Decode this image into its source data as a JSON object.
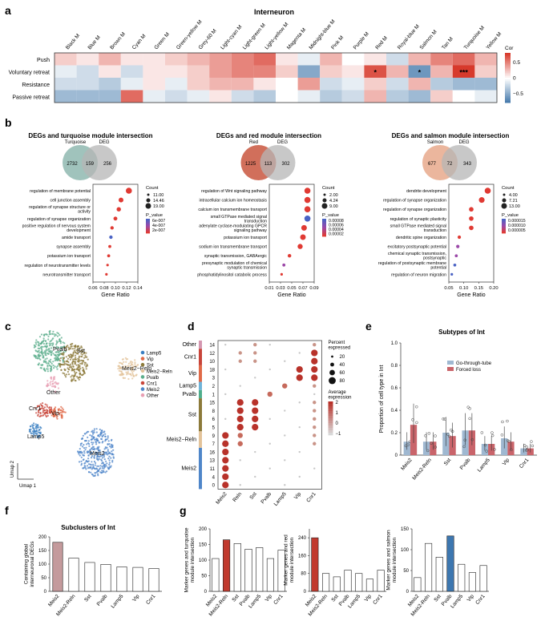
{
  "panels": {
    "a": {
      "label": "a",
      "title": "Interneuron",
      "modules": [
        "Black M",
        "Blue M",
        "Brown M",
        "Cyan M",
        "Green M",
        "Green-yellow M",
        "Grey-60 M",
        "Light-cyan M",
        "Light-green M",
        "Light-yellow M",
        "Magenta M",
        "Midnight-blue M",
        "Pink M",
        "Purple M",
        "Red M",
        "Royal-blue M",
        "Salmon M",
        "Tan M",
        "Turquoise M",
        "Yellow M"
      ],
      "rows": [
        "Push",
        "Voluntary retreat",
        "Resistance",
        "Passive retreat"
      ],
      "values": [
        [
          0.2,
          0.1,
          0.3,
          0.1,
          0.1,
          0.2,
          0.3,
          0.4,
          0.5,
          0.6,
          0.1,
          -0.1,
          0.3,
          0.0,
          0.1,
          -0.2,
          0.3,
          0.5,
          0.6,
          0.3
        ],
        [
          -0.1,
          -0.2,
          0.1,
          -0.2,
          0.1,
          0.1,
          0.2,
          0.4,
          0.5,
          0.5,
          0.2,
          -0.5,
          0.2,
          0.1,
          0.7,
          0.3,
          -0.6,
          0.3,
          0.8,
          0.2
        ],
        [
          -0.2,
          -0.2,
          -0.3,
          -0.1,
          0.1,
          -0.1,
          0.2,
          0.3,
          0.3,
          0.1,
          0.0,
          0.4,
          -0.2,
          -0.1,
          0.2,
          -0.2,
          0.3,
          -0.3,
          -0.4,
          -0.4
        ],
        [
          -0.4,
          -0.4,
          -0.4,
          0.6,
          -0.1,
          -0.2,
          -0.1,
          0.1,
          -0.2,
          -0.3,
          0.0,
          -0.1,
          -0.3,
          -0.2,
          0.3,
          -0.3,
          -0.4,
          0.2,
          0.0,
          -0.1
        ]
      ],
      "stars": [
        {
          "row": 1,
          "col": 14,
          "text": "*"
        },
        {
          "row": 1,
          "col": 16,
          "text": "*"
        },
        {
          "row": 1,
          "col": 18,
          "text": "***"
        }
      ],
      "colorbar": {
        "title": "Cor",
        "ticks": [
          "0.5",
          "0",
          "−0.5"
        ],
        "tick_values": [
          0.5,
          0,
          -0.5
        ]
      },
      "colors": {
        "neg": "#3d74a8",
        "mid": "#ffffff",
        "pos": "#d73a2c"
      }
    },
    "b": {
      "label": "b",
      "subpanels": [
        {
          "title": "DEGs and turquoise module intersection",
          "venn": {
            "left_name": "Turquoise",
            "right_name": "DEG",
            "left_only": "2732",
            "overlap": "159",
            "right_only": "256",
            "left_color": "#8fb8b0",
            "right_color": "#b5b5b5"
          },
          "terms": [
            "regulation of membrane potential",
            "cell junction assembly",
            "regulation of synapse structure or activity",
            "regulation of synapse organization",
            "positive regulation of nervous system development",
            "amide transport",
            "synapse assembly",
            "potassium ion transport",
            "regulation of neurotransmitter levels",
            "neurotransmitter transport"
          ],
          "ratios": [
            0.124,
            0.11,
            0.106,
            0.1,
            0.094,
            0.092,
            0.09,
            0.088,
            0.086,
            0.084
          ],
          "counts": [
            19,
            16,
            15,
            14,
            13,
            13,
            12,
            12,
            11,
            11
          ],
          "pvalues": [
            "low",
            "low",
            "low",
            "low",
            "low",
            "high",
            "low",
            "low",
            "low",
            "low"
          ],
          "xticks": [
            "0.06",
            "0.08",
            "0.10",
            "0.12",
            "0.14"
          ],
          "xtick_values": [
            0.06,
            0.08,
            0.1,
            0.12,
            0.14
          ],
          "xlabel": "Gene Ratio",
          "legend": {
            "count_title": "Count",
            "counts": [
              "11.00",
              "14.46",
              "19.00"
            ],
            "p_title": "P_value",
            "p_ticks": [
              "6e-007",
              "4e-007",
              "2e-007"
            ]
          }
        },
        {
          "title": "DEGs and red module intersection",
          "venn": {
            "left_name": "Red",
            "right_name": "DEG",
            "left_only": "1225",
            "overlap": "113",
            "right_only": "302",
            "left_color": "#c9563e",
            "right_color": "#b5b5b5"
          },
          "terms": [
            "regulation of Wnt signaling pathway",
            "intracellular calcium ion homeostasis",
            "calcium ion transmembrane transport",
            "small GTPase mediated signal transduction",
            "adenylate cyclase-modulating GPCR signaling pathway",
            "potassium ion transport",
            "sodium ion transmembrane transport",
            "synaptic transmission, GABAergic",
            "presynaptic modulation of chemical synaptic transmission",
            "phosphatidylinositol catabolic process"
          ],
          "ratios": [
            0.078,
            0.078,
            0.078,
            0.078,
            0.072,
            0.07,
            0.065,
            0.046,
            0.036,
            0.032
          ],
          "counts": [
            9,
            9,
            9,
            9,
            8,
            8,
            7,
            4,
            3,
            2
          ],
          "pvalues": [
            "low",
            "low",
            "low",
            "high",
            "low",
            "low",
            "low",
            "low",
            "mid",
            "low"
          ],
          "xticks": [
            "0.01",
            "0.03",
            "0.05",
            "0.07",
            "0.09"
          ],
          "xtick_values": [
            0.01,
            0.03,
            0.05,
            0.07,
            0.09
          ],
          "xlabel": "Gene Ratio",
          "legend": {
            "count_title": "Count",
            "counts": [
              "2.00",
              "4.24",
              "9.00"
            ],
            "p_title": "P_value",
            "p_ticks": [
              "0.00008",
              "0.00006",
              "0.00004",
              "0.00002"
            ]
          }
        },
        {
          "title": "DEGs and salmon module intersection",
          "venn": {
            "left_name": "Salmon",
            "right_name": "DEG",
            "left_only": "677",
            "overlap": "72",
            "right_only": "343",
            "left_color": "#e8a98c",
            "right_color": "#b5b5b5"
          },
          "terms": [
            "dendrite development",
            "regulation of synapse organization",
            "regulation of synapse organization",
            "regulation of synaptic plasticity",
            "small GTPase mediated signal transduction",
            "dendritic spine organization",
            "excitatory postsynaptic potential",
            "chemical synaptic transmission, postsynaptic",
            "regulation of postsynaptic membrane potential",
            "regulation of neuron migration"
          ],
          "ratios": [
            0.18,
            0.16,
            0.125,
            0.125,
            0.125,
            0.085,
            0.08,
            0.075,
            0.07,
            0.06
          ],
          "counts": [
            13,
            12,
            9,
            9,
            9,
            6,
            6,
            5,
            5,
            4
          ],
          "pvalues": [
            "low",
            "low",
            "low",
            "low",
            "low",
            "low",
            "mid",
            "mid",
            "high",
            "high"
          ],
          "xticks": [
            "0.05",
            "0.10",
            "0.15",
            "0.20"
          ],
          "xtick_values": [
            0.05,
            0.1,
            0.15,
            0.2
          ],
          "xlabel": "Gene Ratio",
          "legend": {
            "count_title": "Count",
            "counts": [
              "4.00",
              "7.21",
              "13.00"
            ],
            "p_title": "P_value",
            "p_ticks": [
              "0.000015",
              "0.000010",
              "0.000005"
            ]
          }
        }
      ],
      "p_colors": {
        "low": "#e03a33",
        "mid": "#9b48a8",
        "high": "#4a62c4"
      }
    },
    "c": {
      "label": "c",
      "clusters": [
        {
          "name": "Lamp5",
          "color": "#3a7fc2",
          "label_shown": true
        },
        {
          "name": "Vip",
          "color": "#e06a48",
          "label_shown": true
        },
        {
          "name": "Sst",
          "color": "#8c7a3a",
          "label_shown": true
        },
        {
          "name": "Meis2−Reln",
          "color": "#e3c39a",
          "label_shown": true
        },
        {
          "name": "Pvalb",
          "color": "#5cae8c",
          "label_shown": true
        },
        {
          "name": "Cnr1",
          "color": "#c8453a",
          "label_shown": true
        },
        {
          "name": "Meis2",
          "color": "#4f86c9",
          "label_shown": true
        },
        {
          "name": "Other",
          "color": "#e8a0b4",
          "label_shown": true
        }
      ],
      "axis_x": "Umap 1",
      "axis_y": "Umap 2"
    },
    "d": {
      "label": "d",
      "genes": [
        "Meis2",
        "Reln",
        "Sst",
        "Pvalb",
        "Lamp5",
        "Vip",
        "Cnr1"
      ],
      "groups": [
        {
          "name": "Other",
          "color": "#d497b0",
          "clusters": [
            "14"
          ]
        },
        {
          "name": "Cnr1",
          "color": "#c8453a",
          "clusters": [
            "12",
            "10"
          ]
        },
        {
          "name": "Vip",
          "color": "#e06a48",
          "clusters": [
            "18",
            "3"
          ]
        },
        {
          "name": "Lamp5",
          "color": "#6fb4d9",
          "clusters": [
            "2"
          ]
        },
        {
          "name": "Pvalb",
          "color": "#4fae8c",
          "clusters": [
            "1"
          ]
        },
        {
          "name": "Sst",
          "color": "#8c7a3a",
          "clusters": [
            "15",
            "8",
            "6",
            "5"
          ]
        },
        {
          "name": "Meis2−Reln",
          "color": "#e3c39a",
          "clusters": [
            "9",
            "7"
          ]
        },
        {
          "name": "Meis2",
          "color": "#4f86c9",
          "clusters": [
            "16",
            "13",
            "11",
            "4",
            "0"
          ]
        }
      ],
      "pct_title": "Percent expressed",
      "pct_ticks": [
        "20",
        "40",
        "60",
        "80"
      ],
      "expr_title": "Average expression",
      "expr_ticks": [
        "2",
        "1",
        "0",
        "−1"
      ]
    },
    "e": {
      "label": "e",
      "title": "Subtypes of Int",
      "ylabel": "Proportion of cell type in Int",
      "yticks": [
        "0",
        "0.2",
        "0.4",
        "0.6",
        "0.8",
        "1.0"
      ],
      "ytick_values": [
        0,
        0.2,
        0.4,
        0.6,
        0.8,
        1.0
      ],
      "chart_data": {
        "type": "bar",
        "categories": [
          "Meis2",
          "Meis2-Reln",
          "Sst",
          "Pvalb",
          "Lamp5",
          "Vip",
          "Cnr1"
        ],
        "series": [
          {
            "name": "Go-through-tube",
            "values": [
              0.12,
              0.12,
              0.2,
              0.22,
              0.1,
              0.15,
              0.06
            ],
            "color": "#9fb8d1"
          },
          {
            "name": "Forced loss",
            "values": [
              0.27,
              0.12,
              0.17,
              0.22,
              0.1,
              0.12,
              0.06
            ],
            "color": "#c9646a"
          }
        ],
        "ylim": [
          0,
          1.0
        ]
      }
    },
    "f": {
      "label": "f",
      "title": "Subclusters of Int",
      "ylabel": "Containing global interneuronal DEGs",
      "chart_data": {
        "type": "bar",
        "categories": [
          "Meis2",
          "Meis2-Reln",
          "Sst",
          "Pvalb",
          "Lamp5",
          "Vip",
          "Cnr1"
        ],
        "values": [
          180,
          122,
          106,
          99,
          90,
          88,
          84
        ],
        "ylim": [
          0,
          200
        ],
        "yticks": [
          "0",
          "50",
          "100",
          "150",
          "200"
        ],
        "highlight": 0,
        "highlight_color": "#c49a9c"
      }
    },
    "g": {
      "label": "g",
      "charts": [
        {
          "ylabel": "Marker genes and turquoise module intersection",
          "type": "bar",
          "categories": [
            "Meis2",
            "Meis2-Reln",
            "Sst",
            "Pvalb",
            "Lamp5",
            "Vip",
            "Cnr1"
          ],
          "values": [
            105,
            165,
            153,
            135,
            140,
            105,
            132
          ],
          "ylim": [
            0,
            200
          ],
          "yticks": [
            "0",
            "50",
            "100",
            "150",
            "200"
          ],
          "highlight": 1,
          "highlight_color": "#c13a2e"
        },
        {
          "ylabel": "Marker genes and red module intersection",
          "type": "bar",
          "categories": [
            "Meis2",
            "Meis2-Reln",
            "Sst",
            "Pvalb",
            "Lamp5",
            "Vip",
            "Cnr1"
          ],
          "values": [
            240,
            80,
            65,
            95,
            80,
            55,
            95
          ],
          "ylim": [
            0,
            280
          ],
          "yticks": [
            "0",
            "80",
            "160",
            "240"
          ],
          "highlight": 0,
          "highlight_color": "#c13a2e"
        },
        {
          "ylabel": "Marker genes and salmon module intersection",
          "type": "bar",
          "categories": [
            "Meis2",
            "Meis2-Reln",
            "Sst",
            "Pvalb",
            "Lamp5",
            "Vip",
            "Cnr1"
          ],
          "values": [
            33,
            115,
            82,
            133,
            65,
            45,
            62
          ],
          "ylim": [
            0,
            150
          ],
          "yticks": [
            "0",
            "50",
            "100",
            "150"
          ],
          "highlight": 3,
          "highlight_color": "#3d77b0"
        }
      ]
    }
  }
}
